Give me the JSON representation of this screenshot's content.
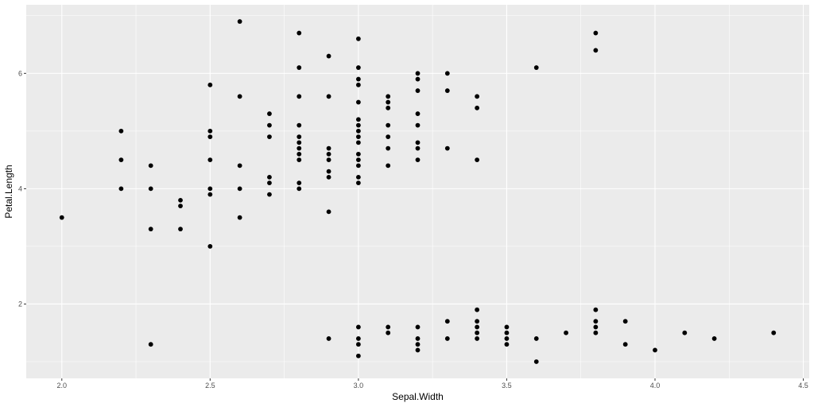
{
  "chart_data": {
    "type": "scatter",
    "title": "",
    "xlabel": "Sepal.Width",
    "ylabel": "Petal.Length",
    "xlim": [
      1.88,
      4.52
    ],
    "ylim": [
      0.71,
      7.19
    ],
    "grid": true,
    "x_ticks": [
      2.0,
      2.5,
      3.0,
      3.5,
      4.0,
      4.5
    ],
    "x_tick_labels": [
      "2.0",
      "2.5",
      "3.0",
      "3.5",
      "4.0",
      "4.5"
    ],
    "y_ticks": [
      2,
      4,
      6
    ],
    "y_tick_labels": [
      "2",
      "4",
      "6"
    ],
    "point_color": "#000000",
    "panel_color": "#ebebeb",
    "grid_color": "#ffffff",
    "points": [
      [
        2.0,
        3.5
      ],
      [
        2.2,
        5.0
      ],
      [
        2.2,
        4.5
      ],
      [
        2.2,
        4.0
      ],
      [
        2.3,
        4.4
      ],
      [
        2.3,
        4.0
      ],
      [
        2.3,
        3.3
      ],
      [
        2.3,
        1.3
      ],
      [
        2.4,
        3.8
      ],
      [
        2.4,
        3.7
      ],
      [
        2.4,
        3.3
      ],
      [
        2.5,
        5.8
      ],
      [
        2.5,
        5.0
      ],
      [
        2.5,
        4.9
      ],
      [
        2.5,
        4.5
      ],
      [
        2.5,
        4.0
      ],
      [
        2.5,
        3.9
      ],
      [
        2.5,
        3.0
      ],
      [
        2.6,
        6.9
      ],
      [
        2.6,
        5.6
      ],
      [
        2.6,
        4.4
      ],
      [
        2.6,
        4.0
      ],
      [
        2.6,
        3.5
      ],
      [
        2.7,
        5.3
      ],
      [
        2.7,
        5.1
      ],
      [
        2.7,
        4.9
      ],
      [
        2.7,
        4.2
      ],
      [
        2.7,
        4.1
      ],
      [
        2.7,
        3.9
      ],
      [
        2.8,
        6.7
      ],
      [
        2.8,
        6.1
      ],
      [
        2.8,
        5.6
      ],
      [
        2.8,
        5.1
      ],
      [
        2.8,
        4.9
      ],
      [
        2.8,
        4.8
      ],
      [
        2.8,
        4.7
      ],
      [
        2.8,
        4.6
      ],
      [
        2.8,
        4.5
      ],
      [
        2.8,
        4.1
      ],
      [
        2.8,
        4.0
      ],
      [
        2.9,
        6.3
      ],
      [
        2.9,
        5.6
      ],
      [
        2.9,
        4.7
      ],
      [
        2.9,
        4.6
      ],
      [
        2.9,
        4.5
      ],
      [
        2.9,
        4.3
      ],
      [
        2.9,
        4.2
      ],
      [
        2.9,
        3.6
      ],
      [
        2.9,
        1.4
      ],
      [
        3.0,
        6.6
      ],
      [
        3.0,
        6.1
      ],
      [
        3.0,
        5.9
      ],
      [
        3.0,
        5.8
      ],
      [
        3.0,
        5.5
      ],
      [
        3.0,
        5.2
      ],
      [
        3.0,
        5.1
      ],
      [
        3.0,
        5.0
      ],
      [
        3.0,
        4.9
      ],
      [
        3.0,
        4.8
      ],
      [
        3.0,
        4.6
      ],
      [
        3.0,
        4.5
      ],
      [
        3.0,
        4.4
      ],
      [
        3.0,
        4.2
      ],
      [
        3.0,
        4.1
      ],
      [
        3.0,
        1.6
      ],
      [
        3.0,
        1.4
      ],
      [
        3.0,
        1.3
      ],
      [
        3.0,
        1.1
      ],
      [
        3.1,
        5.6
      ],
      [
        3.1,
        5.5
      ],
      [
        3.1,
        5.4
      ],
      [
        3.1,
        5.1
      ],
      [
        3.1,
        4.9
      ],
      [
        3.1,
        4.7
      ],
      [
        3.1,
        4.4
      ],
      [
        3.1,
        1.6
      ],
      [
        3.1,
        1.5
      ],
      [
        3.2,
        6.0
      ],
      [
        3.2,
        5.9
      ],
      [
        3.2,
        5.7
      ],
      [
        3.2,
        5.3
      ],
      [
        3.2,
        5.1
      ],
      [
        3.2,
        4.8
      ],
      [
        3.2,
        4.7
      ],
      [
        3.2,
        4.5
      ],
      [
        3.2,
        1.6
      ],
      [
        3.2,
        1.4
      ],
      [
        3.2,
        1.3
      ],
      [
        3.2,
        1.2
      ],
      [
        3.3,
        6.0
      ],
      [
        3.3,
        5.7
      ],
      [
        3.3,
        4.7
      ],
      [
        3.3,
        1.7
      ],
      [
        3.3,
        1.4
      ],
      [
        3.4,
        5.6
      ],
      [
        3.4,
        5.4
      ],
      [
        3.4,
        4.5
      ],
      [
        3.4,
        1.9
      ],
      [
        3.4,
        1.7
      ],
      [
        3.4,
        1.6
      ],
      [
        3.4,
        1.5
      ],
      [
        3.4,
        1.4
      ],
      [
        3.5,
        1.6
      ],
      [
        3.5,
        1.5
      ],
      [
        3.5,
        1.4
      ],
      [
        3.5,
        1.3
      ],
      [
        3.6,
        6.1
      ],
      [
        3.6,
        1.4
      ],
      [
        3.6,
        1.0
      ],
      [
        3.7,
        1.5
      ],
      [
        3.8,
        6.7
      ],
      [
        3.8,
        6.4
      ],
      [
        3.8,
        1.9
      ],
      [
        3.8,
        1.7
      ],
      [
        3.8,
        1.6
      ],
      [
        3.8,
        1.5
      ],
      [
        3.9,
        1.7
      ],
      [
        3.9,
        1.3
      ],
      [
        4.0,
        1.2
      ],
      [
        4.1,
        1.5
      ],
      [
        4.2,
        1.4
      ],
      [
        4.4,
        1.5
      ]
    ]
  }
}
